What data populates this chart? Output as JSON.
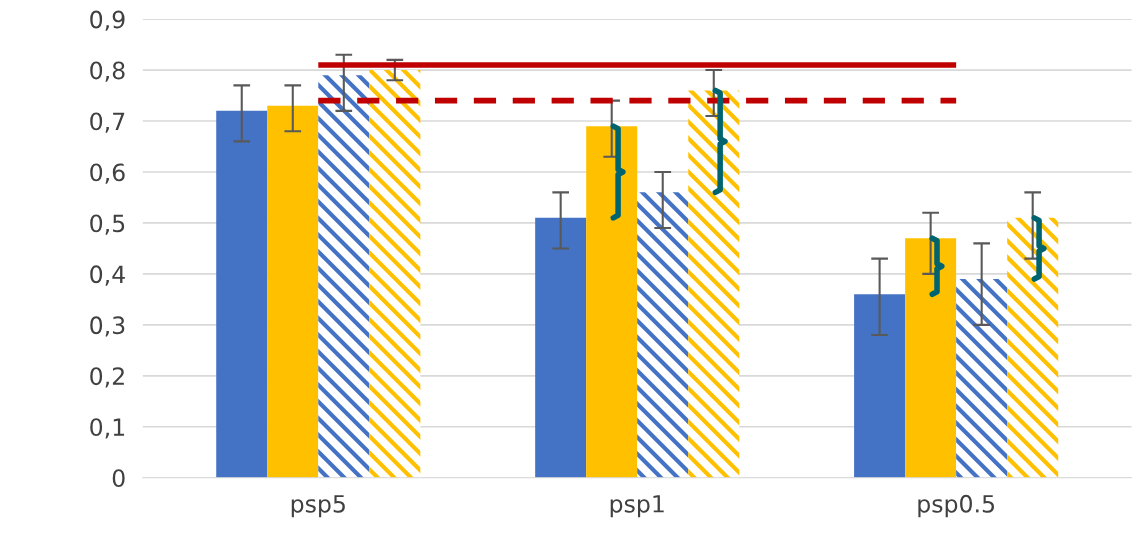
{
  "chart_data": {
    "type": "bar",
    "categories": [
      "psp5",
      "psp1",
      "psp0.5"
    ],
    "series": [
      {
        "color": "#4472c4",
        "values": [
          0.72,
          0.51,
          0.36
        ],
        "errors": [
          [
            0.66,
            0.77
          ],
          [
            0.45,
            0.56
          ],
          [
            0.28,
            0.43
          ]
        ]
      },
      {
        "color": "#ffc000",
        "values": [
          0.73,
          0.69,
          0.47
        ],
        "errors": [
          [
            0.68,
            0.77
          ],
          [
            0.63,
            0.74
          ],
          [
            0.4,
            0.52
          ]
        ]
      },
      {
        "color": "#4472c4",
        "values": [
          0.79,
          0.56,
          0.39
        ],
        "errors": [
          [
            0.72,
            0.83
          ],
          [
            0.49,
            0.6
          ],
          [
            0.3,
            0.46
          ]
        ]
      },
      {
        "color": "#ffc000",
        "values": [
          0.8,
          0.76,
          0.51
        ],
        "errors": [
          [
            0.78,
            0.82
          ],
          [
            0.71,
            0.8
          ],
          [
            0.43,
            0.56
          ]
        ]
      }
    ],
    "ylim": [
      0,
      0.9
    ],
    "yticks": [
      0,
      {
        "value": 0.1,
        "label": "0,1"
      },
      {
        "value": 0.2,
        "label": "0,2"
      },
      {
        "value": 0.3,
        "label": "0,3"
      },
      {
        "value": 0.4,
        "label": "0,4"
      },
      {
        "value": 0.5,
        "label": "0,5"
      },
      {
        "value": 0.6,
        "label": "0,6"
      },
      {
        "value": 0.7,
        "label": "0,7"
      },
      {
        "value": 0.8,
        "label": "0,8"
      },
      {
        "value": 0.9,
        "label": "0,9"
      }
    ],
    "ref_lines": [
      {
        "axis": "y",
        "value": 0.81,
        "color": "#c00000",
        "line_style": "solid"
      },
      {
        "axis": "y",
        "value": 0.74,
        "color": "#c00000",
        "line_style": "dashed"
      }
    ],
    "grid": "y",
    "legend": false
  }
}
